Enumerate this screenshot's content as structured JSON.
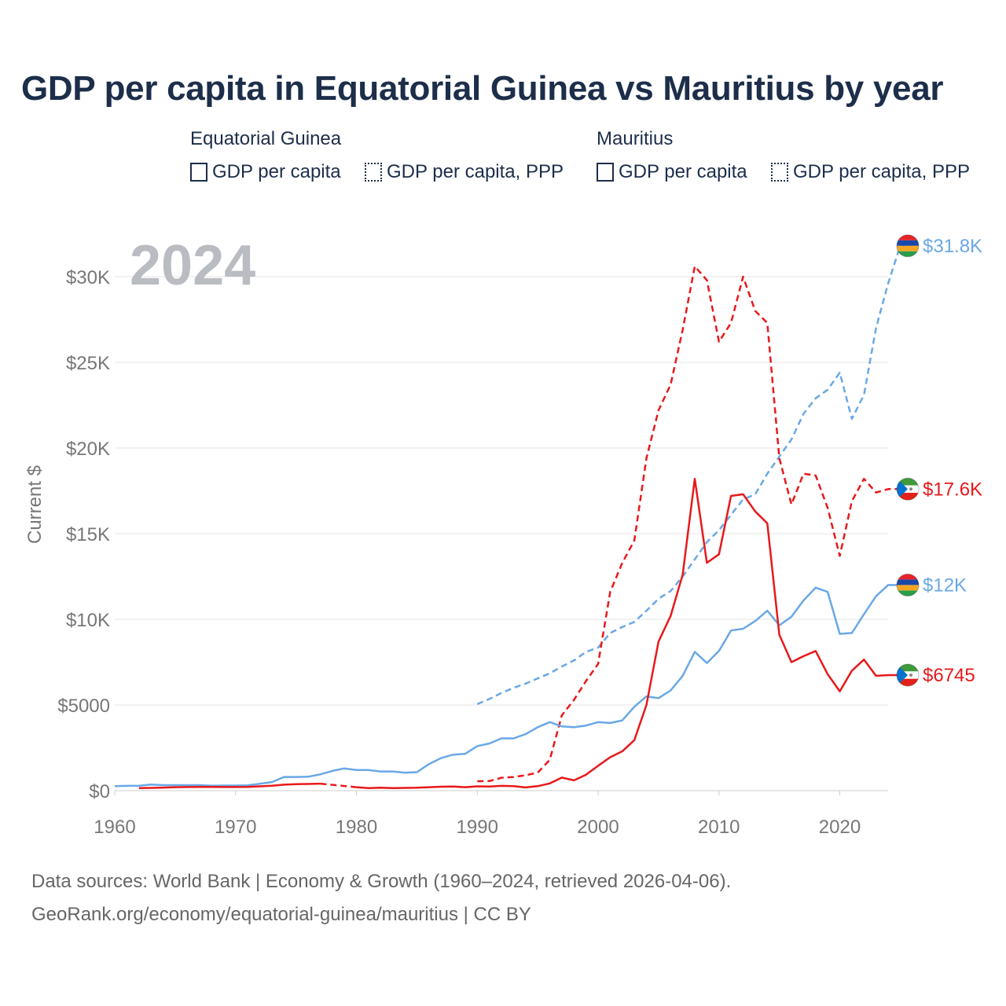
{
  "title": "GDP per capita in Equatorial Guinea vs Mauritius by year",
  "legend": {
    "groups": [
      {
        "country": "Equatorial Guinea",
        "items": [
          "GDP per capita",
          "GDP per capita, PPP"
        ]
      },
      {
        "country": "Mauritius",
        "items": [
          "GDP per capita",
          "GDP per capita, PPP"
        ]
      }
    ]
  },
  "colors": {
    "equatorial_guinea": "#e8191b",
    "mauritius": "#6aa8e6"
  },
  "footer": {
    "line1": "Data sources: World Bank | Economy & Growth (1960–2024, retrieved 2026-04-06).",
    "line2": "GeoRank.org/economy/equatorial-guinea/mauritius | CC BY"
  },
  "chart_data": {
    "type": "line",
    "year_label": "2024",
    "ylabel": "Current $",
    "xlim": [
      1960,
      2024
    ],
    "ylim": [
      0,
      32000
    ],
    "x_ticks": [
      1960,
      1970,
      1980,
      1990,
      2000,
      2010,
      2020
    ],
    "y_ticks": [
      {
        "value": 0,
        "label": "$0"
      },
      {
        "value": 5000,
        "label": "$5000"
      },
      {
        "value": 10000,
        "label": "$10K"
      },
      {
        "value": 15000,
        "label": "$15K"
      },
      {
        "value": 20000,
        "label": "$20K"
      },
      {
        "value": 25000,
        "label": "$25K"
      },
      {
        "value": 30000,
        "label": "$30K"
      }
    ],
    "series": [
      {
        "name": "Mauritius GDP per capita, PPP",
        "country": "Mauritius",
        "color": "#6aa8e6",
        "style": "dashed",
        "end_label": "$31.8K",
        "flag": "mauritius",
        "points": [
          [
            1990,
            5050
          ],
          [
            1991,
            5350
          ],
          [
            1992,
            5700
          ],
          [
            1993,
            6000
          ],
          [
            1994,
            6250
          ],
          [
            1995,
            6550
          ],
          [
            1996,
            6850
          ],
          [
            1997,
            7250
          ],
          [
            1998,
            7600
          ],
          [
            1999,
            8100
          ],
          [
            2000,
            8350
          ],
          [
            2001,
            9200
          ],
          [
            2002,
            9550
          ],
          [
            2003,
            9850
          ],
          [
            2004,
            10500
          ],
          [
            2005,
            11200
          ],
          [
            2006,
            11650
          ],
          [
            2007,
            12500
          ],
          [
            2008,
            13500
          ],
          [
            2009,
            14500
          ],
          [
            2010,
            15200
          ],
          [
            2011,
            16100
          ],
          [
            2012,
            17000
          ],
          [
            2013,
            17300
          ],
          [
            2014,
            18500
          ],
          [
            2015,
            19500
          ],
          [
            2016,
            20500
          ],
          [
            2017,
            22000
          ],
          [
            2018,
            22900
          ],
          [
            2019,
            23400
          ],
          [
            2020,
            24400
          ],
          [
            2021,
            21700
          ],
          [
            2022,
            23100
          ],
          [
            2023,
            27000
          ],
          [
            2024,
            29600
          ],
          [
            2025,
            31800
          ],
          [
            2026,
            31800
          ]
        ]
      },
      {
        "name": "Equatorial Guinea GDP per capita, PPP",
        "country": "Equatorial Guinea",
        "color": "#e8191b",
        "style": "dashed",
        "end_label": "$17.6K",
        "flag": "equatorial-guinea",
        "points": [
          [
            1990,
            550
          ],
          [
            1991,
            560
          ],
          [
            1992,
            750
          ],
          [
            1993,
            800
          ],
          [
            1994,
            900
          ],
          [
            1995,
            1050
          ],
          [
            1996,
            1800
          ],
          [
            1997,
            4400
          ],
          [
            1998,
            5300
          ],
          [
            1999,
            6400
          ],
          [
            2000,
            7400
          ],
          [
            2001,
            11600
          ],
          [
            2002,
            13300
          ],
          [
            2003,
            14600
          ],
          [
            2004,
            19400
          ],
          [
            2005,
            22200
          ],
          [
            2006,
            23700
          ],
          [
            2007,
            26900
          ],
          [
            2008,
            30600
          ],
          [
            2009,
            29800
          ],
          [
            2010,
            26200
          ],
          [
            2011,
            27300
          ],
          [
            2012,
            30000
          ],
          [
            2013,
            28000
          ],
          [
            2014,
            27300
          ],
          [
            2015,
            19400
          ],
          [
            2016,
            16700
          ],
          [
            2017,
            18500
          ],
          [
            2018,
            18400
          ],
          [
            2019,
            16500
          ],
          [
            2020,
            13700
          ],
          [
            2021,
            16900
          ],
          [
            2022,
            18200
          ],
          [
            2023,
            17400
          ],
          [
            2024,
            17600
          ],
          [
            2025,
            17600
          ]
        ]
      },
      {
        "name": "Mauritius GDP per capita",
        "country": "Mauritius",
        "color": "#6aa8e6",
        "style": "solid",
        "end_label": "$12K",
        "flag": "mauritius",
        "points": [
          [
            1960,
            260
          ],
          [
            1961,
            280
          ],
          [
            1962,
            290
          ],
          [
            1963,
            360
          ],
          [
            1964,
            320
          ],
          [
            1965,
            320
          ],
          [
            1966,
            320
          ],
          [
            1967,
            320
          ],
          [
            1968,
            290
          ],
          [
            1969,
            300
          ],
          [
            1970,
            300
          ],
          [
            1971,
            310
          ],
          [
            1972,
            400
          ],
          [
            1973,
            500
          ],
          [
            1974,
            800
          ],
          [
            1975,
            800
          ],
          [
            1976,
            810
          ],
          [
            1977,
            950
          ],
          [
            1978,
            1150
          ],
          [
            1979,
            1300
          ],
          [
            1980,
            1200
          ],
          [
            1981,
            1200
          ],
          [
            1982,
            1120
          ],
          [
            1983,
            1120
          ],
          [
            1984,
            1050
          ],
          [
            1985,
            1080
          ],
          [
            1986,
            1550
          ],
          [
            1987,
            1900
          ],
          [
            1988,
            2100
          ],
          [
            1989,
            2150
          ],
          [
            1990,
            2600
          ],
          [
            1991,
            2750
          ],
          [
            1992,
            3050
          ],
          [
            1993,
            3050
          ],
          [
            1994,
            3300
          ],
          [
            1995,
            3700
          ],
          [
            1996,
            4000
          ],
          [
            1997,
            3750
          ],
          [
            1998,
            3700
          ],
          [
            1999,
            3800
          ],
          [
            2000,
            4000
          ],
          [
            2001,
            3950
          ],
          [
            2002,
            4100
          ],
          [
            2003,
            4900
          ],
          [
            2004,
            5500
          ],
          [
            2005,
            5400
          ],
          [
            2006,
            5850
          ],
          [
            2007,
            6700
          ],
          [
            2008,
            8100
          ],
          [
            2009,
            7450
          ],
          [
            2010,
            8150
          ],
          [
            2011,
            9350
          ],
          [
            2012,
            9450
          ],
          [
            2013,
            9900
          ],
          [
            2014,
            10500
          ],
          [
            2015,
            9650
          ],
          [
            2016,
            10150
          ],
          [
            2017,
            11100
          ],
          [
            2018,
            11850
          ],
          [
            2019,
            11600
          ],
          [
            2020,
            9150
          ],
          [
            2021,
            9200
          ],
          [
            2022,
            10300
          ],
          [
            2023,
            11350
          ],
          [
            2024,
            12000
          ],
          [
            2025,
            12000
          ]
        ]
      },
      {
        "name": "Equatorial Guinea GDP per capita",
        "country": "Equatorial Guinea",
        "color": "#e8191b",
        "style": "solid",
        "end_label": "$6745",
        "flag": "equatorial-guinea",
        "points": [
          [
            1962,
            150
          ],
          [
            1963,
            160
          ],
          [
            1964,
            180
          ],
          [
            1965,
            200
          ],
          [
            1966,
            210
          ],
          [
            1967,
            220
          ],
          [
            1968,
            220
          ],
          [
            1969,
            210
          ],
          [
            1970,
            210
          ],
          [
            1971,
            220
          ],
          [
            1972,
            250
          ],
          [
            1973,
            290
          ],
          [
            1974,
            350
          ],
          [
            1975,
            380
          ],
          [
            1976,
            390
          ],
          [
            1977,
            410
          ],
          [
            1978,
            null
          ],
          [
            1980,
            200
          ],
          [
            1981,
            150
          ],
          [
            1982,
            170
          ],
          [
            1983,
            150
          ],
          [
            1984,
            160
          ],
          [
            1985,
            170
          ],
          [
            1986,
            200
          ],
          [
            1987,
            230
          ],
          [
            1988,
            240
          ],
          [
            1989,
            200
          ],
          [
            1990,
            250
          ],
          [
            1991,
            240
          ],
          [
            1992,
            280
          ],
          [
            1993,
            260
          ],
          [
            1994,
            190
          ],
          [
            1995,
            260
          ],
          [
            1996,
            420
          ],
          [
            1997,
            760
          ],
          [
            1998,
            600
          ],
          [
            1999,
            930
          ],
          [
            2000,
            1450
          ],
          [
            2001,
            1950
          ],
          [
            2002,
            2300
          ],
          [
            2003,
            2950
          ],
          [
            2004,
            5000
          ],
          [
            2005,
            8700
          ],
          [
            2006,
            10200
          ],
          [
            2007,
            12600
          ],
          [
            2008,
            18200
          ],
          [
            2009,
            13300
          ],
          [
            2010,
            13800
          ],
          [
            2011,
            17200
          ],
          [
            2012,
            17300
          ],
          [
            2013,
            16300
          ],
          [
            2014,
            15600
          ],
          [
            2015,
            9100
          ],
          [
            2016,
            7500
          ],
          [
            2017,
            7850
          ],
          [
            2018,
            8150
          ],
          [
            2019,
            6800
          ],
          [
            2020,
            5800
          ],
          [
            2021,
            7000
          ],
          [
            2022,
            7650
          ],
          [
            2023,
            6700
          ],
          [
            2024,
            6745
          ],
          [
            2025,
            6745
          ]
        ],
        "gap_segment": [
          [
            1977,
            410
          ],
          [
            1980,
            200
          ]
        ]
      }
    ]
  }
}
